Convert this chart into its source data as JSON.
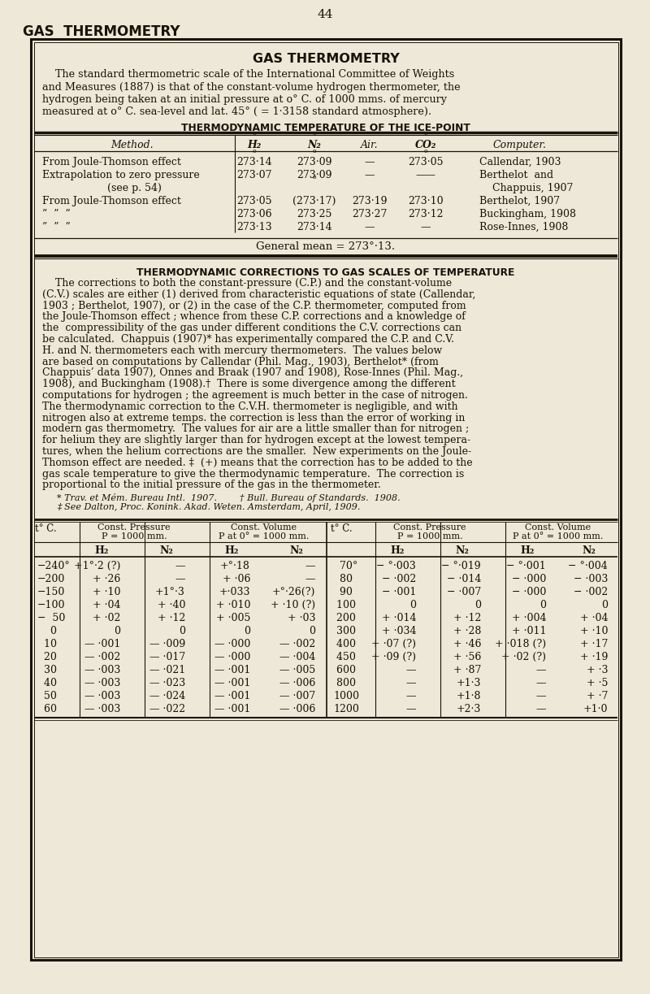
{
  "bg_color": "#ede8d8",
  "box_bg": "#ede8d8",
  "text_color": "#1a1208",
  "page_number": "44",
  "header_title": "GAS  THERMOMETRY",
  "box_title": "GAS THERMOMETRY",
  "intro_lines": [
    "    The standard thermometric scale of the International Committee of Weights",
    "and Measures (1887) is that of the constant-volume hydrogen thermometer, the",
    "hydrogen being taken at an initial pressure at o° C. of 1000 mms. of mercury",
    "measured at o° C. sea-level and lat. 45° ( = 1·3158 standard atmosphere)."
  ],
  "table1_title": "THERMODYNAMIC TEMPERATURE OF THE ICE-POINT",
  "table1_rows": [
    [
      "From Joule-Thomson effect",
      "273·14",
      "273·09",
      "—",
      "273·05",
      "Callendar, 1903"
    ],
    [
      "Extrapolation to zero pressure",
      "273·07",
      "273·09",
      "—",
      "——",
      "Berthelot  and"
    ],
    [
      "(see p. 54)",
      "",
      "",
      "",
      "",
      "    Chappuis, 1907"
    ],
    [
      "From Joule-Thomson effect",
      "273·05",
      "(273·17)",
      "273·19",
      "273·10",
      "Berthelot, 1907"
    ],
    [
      "”  ”  ”",
      "273·06",
      "273·25",
      "273·27",
      "273·12",
      "Buckingham, 1908"
    ],
    [
      "”  ”  ”",
      "273·13",
      "273·14",
      "—",
      "—",
      "Rose-Innes, 1908"
    ]
  ],
  "general_mean": "General mean = 273°·13.",
  "section2_title": "THERMODYNAMIC CORRECTIONS TO GAS SCALES OF TEMPERATURE",
  "section2_lines": [
    "    The corrections to both the constant-pressure (C.P.) and the constant-volume",
    "(C.V.) scales are either (1) derived from characteristic equations of state (Callendar,",
    "1903 ; Berthelot, 1907), or (2) in the case of the C.P. thermometer, computed from",
    "the Joule-Thomson effect ; whence from these C.P. corrections and a knowledge of",
    "the  compressibility of the gas under different conditions the C.V. corrections can",
    "be calculated.  Chappuis (1907)* has experimentally compared the C.P. and C.V.",
    "H. and N. thermometers each with mercury thermometers.  The values below",
    "are based on computations by Callendar (Phil. Mag., 1903), Berthelot* (from",
    "Chappuis’ data 1907), Onnes and Braak (1907 and 1908), Rose-Innes (Phil. Mag.,",
    "1908), and Buckingham (1908).†  There is some divergence among the different",
    "computations for hydrogen ; the agreement is much better in the case of nitrogen.",
    "The thermodynamic correction to the C.V.H. thermometer is negligible, and with",
    "nitrogen also at extreme temps. the correction is less than the error of working in",
    "modern gas thermometry.  The values for air are a little smaller than for nitrogen ;",
    "for helium they are slightly larger than for hydrogen except at the lowest tempera-",
    "tures, when the helium corrections are the smaller.  New experiments on the Joule-",
    "Thomson effect are needed. ‡  (+) means that the correction has to be added to the",
    "gas scale temperature to give the thermodynamic temperature.  The correction is",
    "proportional to the initial pressure of the gas in the thermometer."
  ],
  "footnotes": [
    "* Trav. et Mém. Bureau Intl.  1907.        † Bull. Bureau of Standards.  1908.",
    "‡ See Dalton, Proc. Konink. Akad. Weten. Amsterdam, April, 1909."
  ],
  "table2_left": [
    [
      "−240°",
      "+1°·2 (?)",
      "—",
      "+°·18",
      "—"
    ],
    [
      "−200",
      "+ ·26",
      "—",
      "+ ·06",
      "—"
    ],
    [
      "−150",
      "+ ·10",
      "+1°·3",
      "+·033",
      "+°·26(?)"
    ],
    [
      "−100",
      "+ ·04",
      "+ ·40",
      "+ ·010",
      "+ ·10 (?)"
    ],
    [
      "−  50",
      "+ ·02",
      "+ ·12",
      "+ ·005",
      "+ ·03"
    ],
    [
      "    0",
      "0",
      "0",
      "0",
      "0"
    ],
    [
      "  10",
      "— ·001",
      "— ·009",
      "— ·000",
      "— ·002"
    ],
    [
      "  20",
      "— ·002",
      "— ·017",
      "— ·000",
      "— ·004"
    ],
    [
      "  30",
      "— ·003",
      "— ·021",
      "— ·001",
      "— ·005"
    ],
    [
      "  40",
      "— ·003",
      "— ·023",
      "— ·001",
      "— ·006"
    ],
    [
      "  50",
      "— ·003",
      "— ·024",
      "— ·001",
      "— ·007"
    ],
    [
      "  60",
      "— ·003",
      "— ·022",
      "— ·001",
      "— ·006"
    ]
  ],
  "table2_right": [
    [
      "  70°",
      "− °·003",
      "− °·019",
      "− °·001",
      "− °·004"
    ],
    [
      "  80",
      "− ·002",
      "− ·014",
      "− ·000",
      "− ·003"
    ],
    [
      "  90",
      "− ·001",
      "− ·007",
      "− ·000",
      "− ·002"
    ],
    [
      " 100",
      "0",
      "0",
      "0",
      "0"
    ],
    [
      " 200",
      "+ ·014",
      "+ ·12",
      "+ ·004",
      "+ ·04"
    ],
    [
      " 300",
      "+ ·034",
      "+ ·28",
      "+ ·011",
      "+ ·10"
    ],
    [
      " 400",
      "+ ·07 (?)",
      "+ ·46",
      "+ ·018 (?)",
      "+ ·17"
    ],
    [
      " 450",
      "+ ·09 (?)",
      "+ ·56",
      "+ ·02 (?)",
      "+ ·19"
    ],
    [
      " 600",
      "—",
      "+ ·87",
      "—",
      "+ ·3"
    ],
    [
      " 800",
      "—",
      "+1·3",
      "—",
      "+ ·5"
    ],
    [
      "1000",
      "—",
      "+1·8",
      "—",
      "+ ·7"
    ],
    [
      "1200",
      "—",
      "+2·3",
      "—",
      "+1·0"
    ]
  ]
}
